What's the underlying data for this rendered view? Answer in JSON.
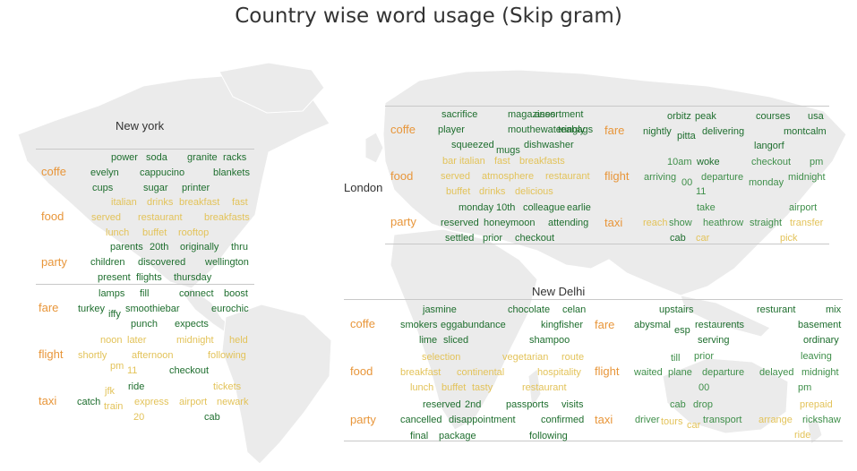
{
  "title": "Country wise word usage (Skip gram)",
  "colors": {
    "strong": "#1e6e2e",
    "medium": "#3f8f4a",
    "light": "#e3c35a",
    "category": "#e8963a",
    "map": "#ebebeb"
  },
  "chart_data": {
    "type": "word-cloud-map",
    "title": "Country wise word usage (Skip gram)",
    "panels": [
      {
        "location": "New york",
        "groups": [
          {
            "category": "coffe",
            "words": [
              "power",
              "soda",
              "granite",
              "racks",
              "evelyn",
              "cappucino",
              "blankets",
              "cups",
              "sugar",
              "printer"
            ]
          },
          {
            "category": "food",
            "words": [
              "italian",
              "drinks",
              "breakfast",
              "fast",
              "served",
              "restaurant",
              "breakfasts",
              "lunch",
              "buffet",
              "rooftop"
            ]
          },
          {
            "category": "party",
            "words": [
              "parents",
              "20th",
              "originally",
              "thru",
              "children",
              "discovered",
              "wellington",
              "present",
              "flights",
              "thursday"
            ]
          },
          {
            "category": "fare",
            "words": [
              "lamps",
              "fill",
              "connect",
              "boost",
              "turkey",
              "iffy",
              "smoothiebar",
              "eurochic",
              "punch",
              "expects"
            ]
          },
          {
            "category": "flight",
            "words": [
              "noon",
              "later",
              "midnight",
              "held",
              "shortly",
              "afternoon",
              "following",
              "pm",
              "11",
              "checkout"
            ]
          },
          {
            "category": "taxi",
            "words": [
              "jfk",
              "ride",
              "tickets",
              "catch",
              "train",
              "express",
              "airport",
              "newark",
              "20",
              "cab"
            ]
          }
        ]
      },
      {
        "location": "London",
        "groups": [
          {
            "category": "coffe",
            "words": [
              "sacrifice",
              "magazines",
              "assortment",
              "player",
              "mouthewateringly",
              "teabags",
              "squeezed",
              "mugs",
              "dishwasher"
            ]
          },
          {
            "category": "fare",
            "words": [
              "orbitz",
              "peak",
              "courses",
              "usa",
              "nightly",
              "pitta",
              "delivering",
              "montcalm",
              "langorf"
            ]
          },
          {
            "category": "food",
            "words": [
              "bar",
              "italian",
              "fast",
              "breakfasts",
              "served",
              "atmosphere",
              "restaurant",
              "buffet",
              "drinks",
              "delicious"
            ]
          },
          {
            "category": "flight",
            "words": [
              "10am",
              "woke",
              "checkout",
              "pm",
              "arriving",
              "00",
              "departure",
              "monday",
              "midnight",
              "11"
            ]
          },
          {
            "category": "party",
            "words": [
              "monday",
              "10th",
              "colleague",
              "earlie",
              "reserved",
              "honeymoon",
              "attending",
              "settled",
              "prior",
              "checkout"
            ]
          },
          {
            "category": "taxi",
            "words": [
              "take",
              "airport",
              "reach",
              "show",
              "heathrow",
              "straight",
              "transfer",
              "cab",
              "car",
              "pick"
            ]
          }
        ]
      },
      {
        "location": "New Delhi",
        "groups": [
          {
            "category": "coffe",
            "words": [
              "jasmine",
              "chocolate",
              "celan",
              "smokers",
              "eggabundance",
              "kingfisher",
              "lime",
              "sliced",
              "shampoo"
            ]
          },
          {
            "category": "fare",
            "words": [
              "upstairs",
              "resturant",
              "mix",
              "abysmal",
              "esp",
              "restaurents",
              "basement",
              "serving",
              "ordinary"
            ]
          },
          {
            "category": "food",
            "words": [
              "selection",
              "vegetarian",
              "route",
              "breakfast",
              "continental",
              "hospitality",
              "lunch",
              "buffet",
              "tasty",
              "restaurant"
            ]
          },
          {
            "category": "flight",
            "words": [
              "till",
              "prior",
              "leaving",
              "waited",
              "plane",
              "departure",
              "delayed",
              "midnight",
              "00",
              "pm"
            ]
          },
          {
            "category": "party",
            "words": [
              "reserved",
              "2nd",
              "passports",
              "visits",
              "cancelled",
              "disappointment",
              "confirmed",
              "final",
              "package",
              "following"
            ]
          },
          {
            "category": "taxi",
            "words": [
              "cab",
              "drop",
              "prepaid",
              "driver",
              "tours",
              "car",
              "transport",
              "arrange",
              "rickshaw",
              "ride"
            ]
          }
        ]
      }
    ]
  }
}
